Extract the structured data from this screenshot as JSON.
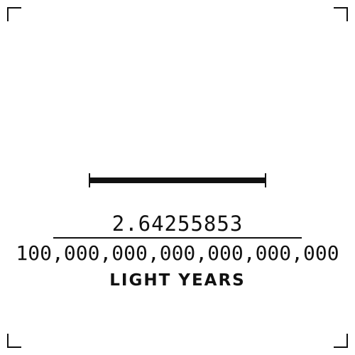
{
  "scale": {
    "numerator": "2.64255853",
    "denominator": "100,000,000,000,000,000,000",
    "unit": "LIGHT YEARS"
  },
  "colors": {
    "ink": "#111111",
    "background": "#ffffff"
  }
}
